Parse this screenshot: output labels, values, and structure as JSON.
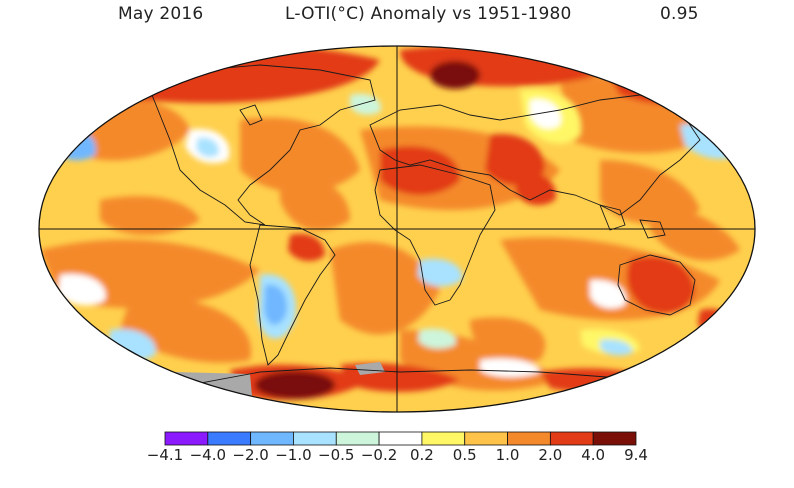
{
  "header": {
    "date": "May 2016",
    "title": "L-OTI(°C) Anomaly vs 1951-1980",
    "global_mean": "0.95"
  },
  "legend": {
    "colors": [
      "#8c1aff",
      "#3a7bff",
      "#6fb7ff",
      "#a8e2ff",
      "#cdf5dc",
      "#ffffff",
      "#fff766",
      "#ffc34a",
      "#f4892b",
      "#e23b17",
      "#7a0f08"
    ],
    "ticks": [
      "−4.1",
      "−4.0",
      "−2.0",
      "−1.0",
      "−0.5",
      "−0.2",
      "0.2",
      "0.5",
      "1.0",
      "2.0",
      "4.0",
      "9.4"
    ]
  },
  "map": {
    "no_data_color": "#a9a9a9",
    "ocean_base_color": "#ffd04e"
  }
}
